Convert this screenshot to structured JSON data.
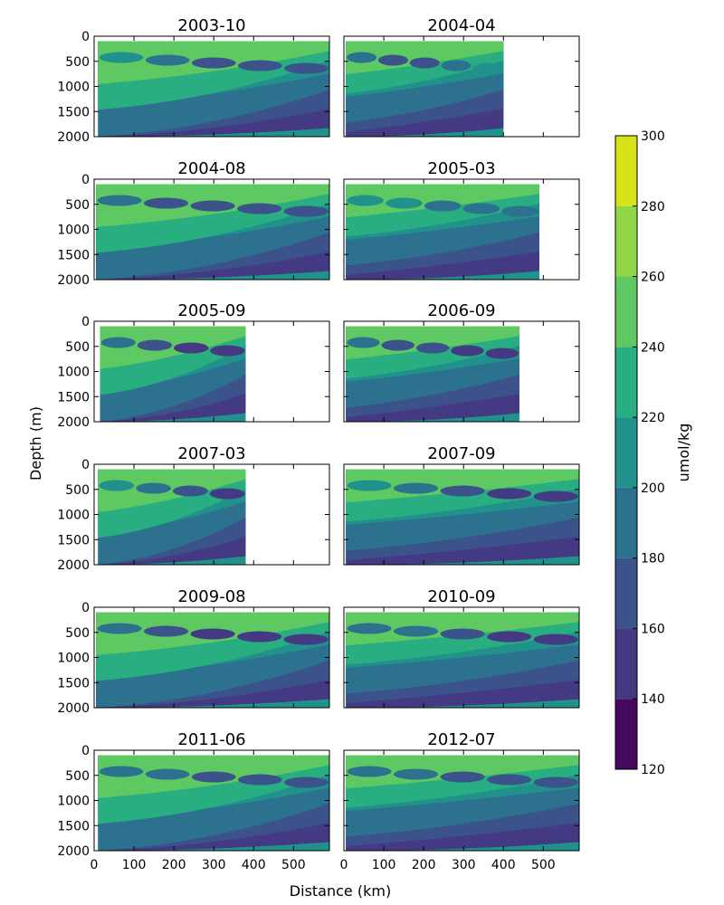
{
  "chart_data": {
    "type": "heatmap",
    "layout": "6 rows x 2 columns of contour-section panels with shared axes",
    "xlabel": "Distance (km)",
    "ylabel": "Depth (m)",
    "xlim": [
      0,
      590
    ],
    "ylim": [
      2000,
      0
    ],
    "x_ticks": [
      "0",
      "100",
      "200",
      "300",
      "400",
      "500"
    ],
    "x_tick_values": [
      0,
      100,
      200,
      300,
      400,
      500
    ],
    "y_ticks": [
      "0",
      "500",
      "1000",
      "1500",
      "2000"
    ],
    "y_tick_values": [
      0,
      500,
      1000,
      1500,
      2000
    ],
    "colorbar": {
      "label": "umol/kg",
      "levels": [
        120,
        140,
        160,
        180,
        200,
        220,
        240,
        260,
        280,
        300
      ],
      "tick_labels": [
        "120",
        "140",
        "160",
        "180",
        "200",
        "220",
        "240",
        "260",
        "280",
        "300"
      ],
      "colors": [
        "#46085c",
        "#443a83",
        "#3b528b",
        "#2c728e",
        "#21918c",
        "#28ae80",
        "#5ec962",
        "#8fd744",
        "#d8e219"
      ]
    },
    "panels": [
      {
        "title": "2003-10",
        "x_extent": [
          10,
          590
        ],
        "mid_depth_level_ids": [
          4,
          3,
          2,
          2,
          2
        ]
      },
      {
        "title": "2004-04",
        "x_extent": [
          5,
          400
        ],
        "mid_depth_level_ids": [
          3,
          2,
          2,
          3,
          4
        ]
      },
      {
        "title": "2004-08",
        "x_extent": [
          5,
          590
        ],
        "mid_depth_level_ids": [
          3,
          2,
          2,
          2,
          2
        ]
      },
      {
        "title": "2005-03",
        "x_extent": [
          5,
          490
        ],
        "mid_depth_level_ids": [
          4,
          4,
          3,
          3,
          3
        ]
      },
      {
        "title": "2005-09",
        "x_extent": [
          15,
          380
        ],
        "mid_depth_level_ids": [
          3,
          2,
          1,
          1
        ]
      },
      {
        "title": "2006-09",
        "x_extent": [
          5,
          440
        ],
        "mid_depth_level_ids": [
          3,
          2,
          2,
          1,
          1
        ]
      },
      {
        "title": "2007-03",
        "x_extent": [
          10,
          380
        ],
        "mid_depth_level_ids": [
          4,
          3,
          2,
          1
        ]
      },
      {
        "title": "2007-09",
        "x_extent": [
          5,
          590
        ],
        "mid_depth_level_ids": [
          4,
          3,
          2,
          1,
          1
        ]
      },
      {
        "title": "2009-08",
        "x_extent": [
          5,
          590
        ],
        "mid_depth_level_ids": [
          3,
          2,
          1,
          1,
          1
        ]
      },
      {
        "title": "2010-09",
        "x_extent": [
          5,
          590
        ],
        "mid_depth_level_ids": [
          3,
          3,
          2,
          1,
          1
        ]
      },
      {
        "title": "2011-06",
        "x_extent": [
          10,
          590
        ],
        "mid_depth_level_ids": [
          3,
          3,
          2,
          2,
          2
        ]
      },
      {
        "title": "2012-07",
        "x_extent": [
          5,
          590
        ],
        "mid_depth_level_ids": [
          3,
          3,
          2,
          2,
          2
        ]
      }
    ]
  }
}
